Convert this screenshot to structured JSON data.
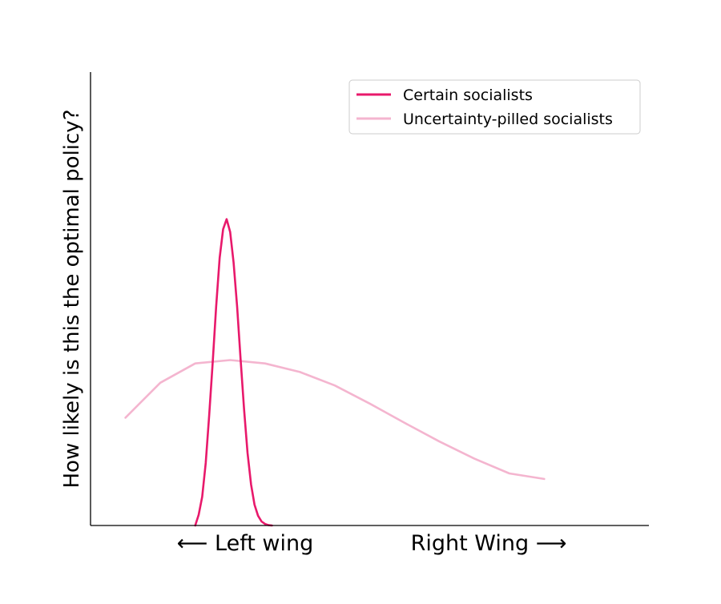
{
  "chart_data": {
    "type": "line",
    "title": "",
    "xlabel": "",
    "ylabel": "How likely is this the optimal policy?",
    "x_tick_labels": [
      "⟵  Left wing",
      "Right Wing ⟶"
    ],
    "xlim": [
      -1.5,
      6.5
    ],
    "ylim": [
      0,
      1.48
    ],
    "grid": false,
    "legend_position": "upper-right",
    "series": [
      {
        "name": "Certain socialists",
        "color": "#e8196b",
        "x": [
          0,
          0.05,
          0.1,
          0.15,
          0.2,
          0.25,
          0.3,
          0.35,
          0.4,
          0.45,
          0.5,
          0.55,
          0.6,
          0.65,
          0.7,
          0.75,
          0.8,
          0.85,
          0.9,
          0.95,
          1.0,
          1.05,
          1.1
        ],
        "y": [
          0.0,
          0.035,
          0.094,
          0.204,
          0.359,
          0.532,
          0.714,
          0.874,
          0.967,
          1.0,
          0.958,
          0.858,
          0.714,
          0.544,
          0.378,
          0.237,
          0.134,
          0.068,
          0.032,
          0.013,
          0.005,
          0.001,
          0.0
        ]
      },
      {
        "name": "Uncertainty-pilled socialists",
        "color": "#f4b5cf",
        "x": [
          -1.0,
          -0.5,
          0.0,
          0.5,
          1.0,
          1.5,
          2.0,
          2.5,
          3.0,
          3.5,
          4.0,
          4.5,
          5.0
        ],
        "y": [
          0.352,
          0.466,
          0.529,
          0.54,
          0.529,
          0.501,
          0.457,
          0.398,
          0.335,
          0.274,
          0.218,
          0.17,
          0.152
        ]
      }
    ]
  }
}
